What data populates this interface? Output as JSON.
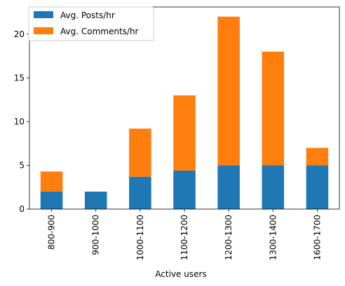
{
  "chart_data": {
    "type": "bar",
    "stacked": true,
    "categories": [
      "800-900",
      "900-1000",
      "1000-1100",
      "1100-1200",
      "1200-1300",
      "1300-1400",
      "1600-1700"
    ],
    "series": [
      {
        "name": "Avg. Posts/hr",
        "color": "#1f77b4",
        "values": [
          2.0,
          2.0,
          3.7,
          4.4,
          5.0,
          5.0,
          5.0
        ]
      },
      {
        "name": "Avg. Comments/hr",
        "color": "#ff7f0e",
        "values": [
          2.3,
          0.0,
          5.5,
          8.6,
          17.0,
          13.0,
          2.0
        ]
      }
    ],
    "xlabel": "Active users",
    "ylabel": "",
    "ylim": [
      0,
      23.1
    ],
    "yticks": [
      0,
      5,
      10,
      15,
      20
    ],
    "grid": false,
    "legend_position": "top-left"
  }
}
